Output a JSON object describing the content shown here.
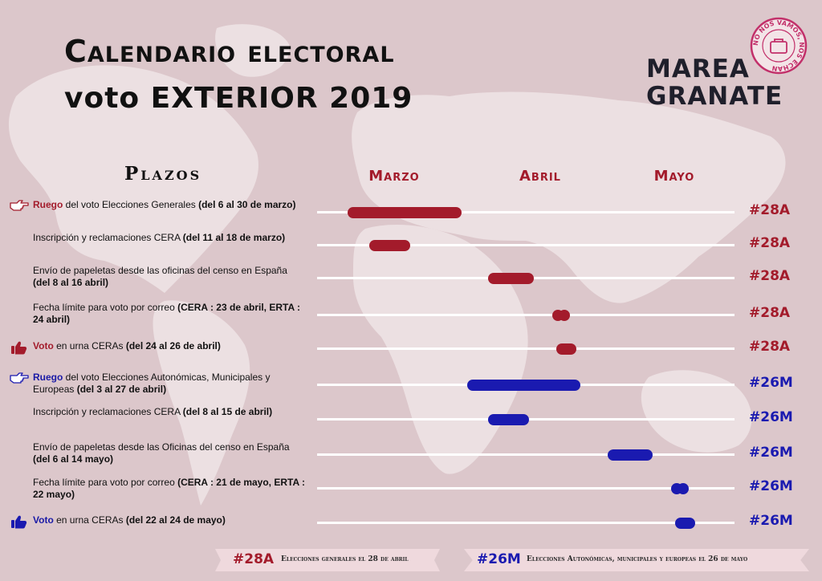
{
  "header": {
    "title_line1": "Calendario electoral",
    "title_line2": "voto EXTERIOR 2019",
    "brand_line1": "MAREA",
    "brand_line2": "GRANATE",
    "seal_text": "NO NOS VAMOS, NOS ECHAN"
  },
  "columns": {
    "plazos": "Plazos",
    "months": [
      "Marzo",
      "Abril",
      "Mayo"
    ]
  },
  "colors": {
    "generales": "#a31b2b",
    "autonomicas": "#1a1ab0",
    "background": "#dcc7cb",
    "track": "#ffffff"
  },
  "chart_data": {
    "type": "gantt",
    "title": "Calendario electoral voto EXTERIOR 2019",
    "x_axis": {
      "start": "2019-03-01",
      "end": "2019-05-31",
      "month_labels": [
        "Marzo",
        "Abril",
        "Mayo"
      ]
    },
    "rows": [
      {
        "group": "generales",
        "icon": "pointing-hand-icon",
        "highlight": "Ruego",
        "text": " del voto Elecciones Generales ",
        "dates": "(del 6 al 30 de marzo)",
        "start": "2019-03-06",
        "end": "2019-03-30",
        "marker": "bar",
        "tag": "#28A"
      },
      {
        "group": "generales",
        "icon": "",
        "highlight": "",
        "text": "Inscripción y reclamaciones CERA ",
        "dates": "(del 11 al 18 de marzo)",
        "start": "2019-03-11",
        "end": "2019-03-18",
        "marker": "bar",
        "tag": "#28A"
      },
      {
        "group": "generales",
        "icon": "",
        "highlight": "",
        "text": "Envío de papeletas desde las oficinas del censo en España ",
        "dates": "(del 8 al 16 abril)",
        "start": "2019-04-08",
        "end": "2019-04-16",
        "marker": "bar",
        "tag": "#28A"
      },
      {
        "group": "generales",
        "icon": "",
        "highlight": "",
        "text": "Fecha límite para voto por correo ",
        "dates": "(CERA : 23 de abril, ERTA : 24 abril)",
        "start": "2019-04-23",
        "end": "2019-04-24",
        "marker": "dots",
        "tag": "#28A"
      },
      {
        "group": "generales",
        "icon": "thumbs-up-icon",
        "highlight": "Voto",
        "text": " en urna CERAs ",
        "dates": "(del 24 al 26 de abril)",
        "start": "2019-04-24",
        "end": "2019-04-26",
        "marker": "bar",
        "tag": "#28A"
      },
      {
        "group": "autonomicas",
        "icon": "pointing-hand-icon",
        "highlight": "Ruego",
        "text": " del voto Elecciones Autonómicas, Municipales y Europeas ",
        "dates": "(del 3 al 27 de abril)",
        "start": "2019-04-03",
        "end": "2019-04-27",
        "marker": "bar",
        "tag": "#26M"
      },
      {
        "group": "autonomicas",
        "icon": "",
        "highlight": "",
        "text": "Inscripción y reclamaciones CERA ",
        "dates": "(del 8 al 15 de abril)",
        "start": "2019-04-08",
        "end": "2019-04-15",
        "marker": "bar",
        "tag": "#26M"
      },
      {
        "group": "autonomicas",
        "icon": "",
        "highlight": "",
        "text": "Envío de papeletas desde las Oficinas del censo en España ",
        "dates": "(del 6 al 14 mayo)",
        "start": "2019-05-06",
        "end": "2019-05-14",
        "marker": "bar",
        "tag": "#26M"
      },
      {
        "group": "autonomicas",
        "icon": "",
        "highlight": "",
        "text": "Fecha límite para voto por correo ",
        "dates": "(CERA : 21 de mayo, ERTA : 22 mayo)",
        "start": "2019-05-21",
        "end": "2019-05-22",
        "marker": "dots",
        "tag": "#26M"
      },
      {
        "group": "autonomicas",
        "icon": "thumbs-up-icon",
        "highlight": "Voto",
        "text": " en urna CERAs ",
        "dates": "(del 22 al 24 de mayo)",
        "start": "2019-05-22",
        "end": "2019-05-24",
        "marker": "bar",
        "tag": "#26M"
      }
    ]
  },
  "legend": {
    "generales_tag": "#28A",
    "generales_text": "Elecciones generales el 28 de abril",
    "autonomicas_tag": "#26M",
    "autonomicas_text": "Elecciones Autonómicas, municipales y europeas  el 26 de mayo"
  }
}
